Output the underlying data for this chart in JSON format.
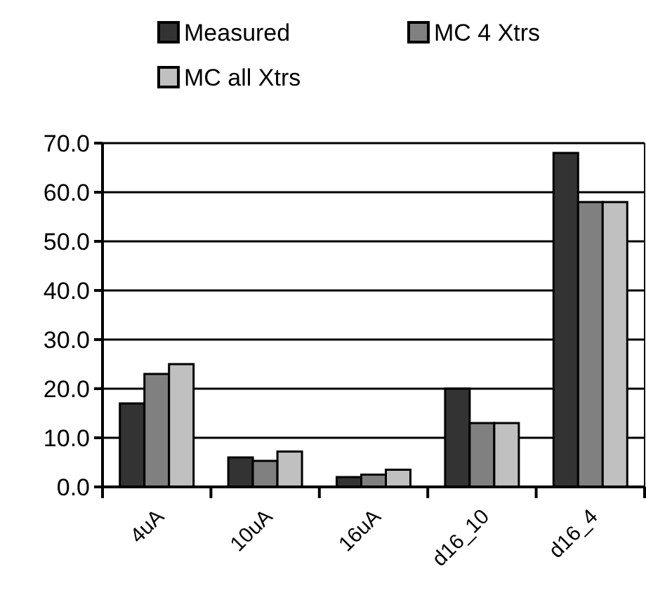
{
  "chart_data": {
    "type": "bar",
    "categories": [
      "4uA",
      "10uA",
      "16uA",
      "d16_10",
      "d16_4"
    ],
    "series": [
      {
        "name": "Measured",
        "color": "#333333",
        "values": [
          17,
          6,
          2,
          20,
          68
        ]
      },
      {
        "name": "MC 4 Xtrs",
        "color": "#808080",
        "values": [
          23,
          5.3,
          2.5,
          13,
          58
        ]
      },
      {
        "name": "MC all Xtrs",
        "color": "#c0c0c0",
        "values": [
          25,
          7.2,
          3.5,
          13,
          58
        ]
      }
    ],
    "ylim": [
      0,
      70
    ],
    "yticks": [
      {
        "value": 0,
        "label": "0.0"
      },
      {
        "value": 10,
        "label": "10.0"
      },
      {
        "value": 20,
        "label": "20.0"
      },
      {
        "value": 30,
        "label": "30.0"
      },
      {
        "value": 40,
        "label": "40.0"
      },
      {
        "value": 50,
        "label": "50.0"
      },
      {
        "value": 60,
        "label": "60.0"
      },
      {
        "value": 70,
        "label": "70.0"
      }
    ],
    "grid": "y",
    "legend": "top"
  }
}
